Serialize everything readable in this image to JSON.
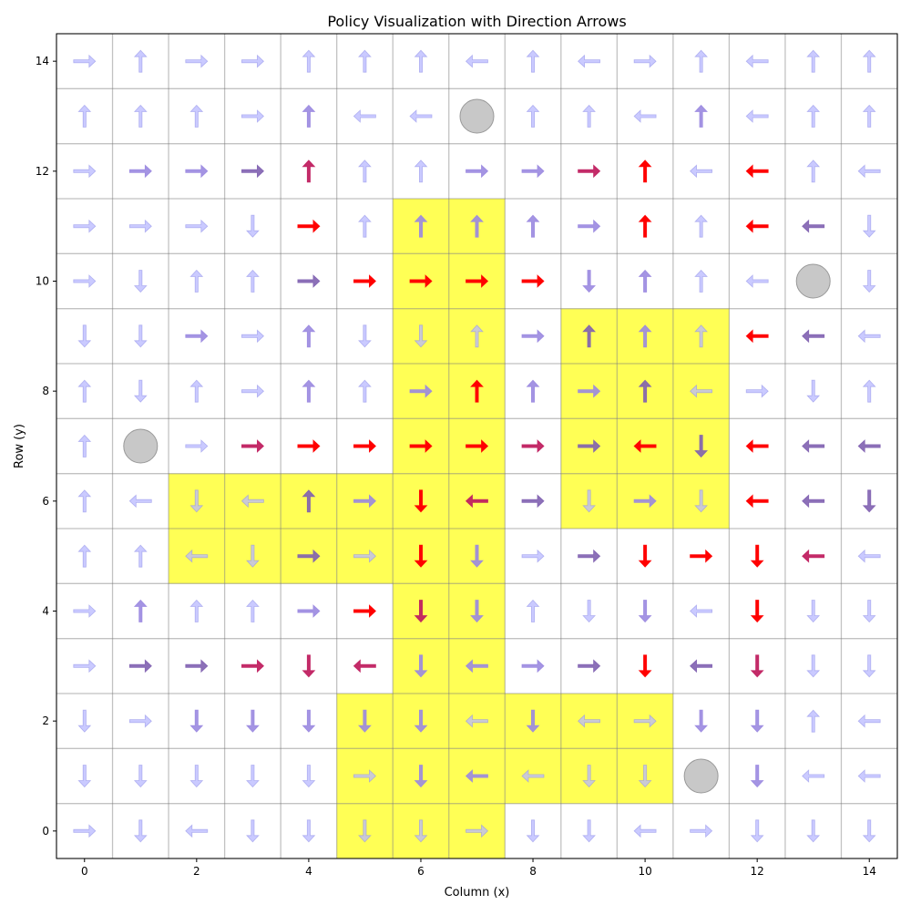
{
  "chart_data": {
    "type": "heatmap",
    "title": "Policy Visualization with Direction Arrows",
    "xlabel": "Column (x)",
    "ylabel": "Row (y)",
    "xlim": [
      -0.5,
      14.5
    ],
    "ylim": [
      14.5,
      -0.5
    ],
    "x_ticks": [
      "0",
      "2",
      "4",
      "6",
      "8",
      "10",
      "12",
      "14"
    ],
    "y_ticks": [
      "0",
      "2",
      "4",
      "6",
      "8",
      "10",
      "12",
      "14"
    ],
    "grid": true,
    "highlight_color": "#ffff55",
    "obstacle_color": "#c8c8c8",
    "grid_size": 15,
    "highlighted_cells": [
      [
        5,
        1
      ],
      [
        6,
        1
      ],
      [
        7,
        1
      ],
      [
        5,
        2
      ],
      [
        6,
        2
      ],
      [
        7,
        2
      ],
      [
        8,
        2
      ],
      [
        9,
        2
      ],
      [
        10,
        2
      ],
      [
        5,
        3
      ],
      [
        6,
        3
      ],
      [
        7,
        3
      ],
      [
        8,
        3
      ],
      [
        9,
        3
      ],
      [
        10,
        3
      ],
      [
        6,
        4
      ],
      [
        7,
        4
      ],
      [
        6,
        5
      ],
      [
        7,
        5
      ],
      [
        2,
        6
      ],
      [
        3,
        6
      ],
      [
        4,
        6
      ],
      [
        5,
        6
      ],
      [
        6,
        6
      ],
      [
        7,
        6
      ],
      [
        2,
        7
      ],
      [
        3,
        7
      ],
      [
        4,
        7
      ],
      [
        5,
        7
      ],
      [
        6,
        7
      ],
      [
        7,
        7
      ],
      [
        9,
        7
      ],
      [
        10,
        7
      ],
      [
        11,
        7
      ],
      [
        6,
        8
      ],
      [
        7,
        8
      ],
      [
        9,
        8
      ],
      [
        10,
        8
      ],
      [
        11,
        8
      ],
      [
        6,
        9
      ],
      [
        7,
        9
      ],
      [
        9,
        9
      ],
      [
        10,
        9
      ],
      [
        11,
        9
      ],
      [
        6,
        10
      ],
      [
        7,
        10
      ],
      [
        9,
        10
      ],
      [
        10,
        10
      ],
      [
        11,
        10
      ],
      [
        6,
        11
      ],
      [
        7,
        11
      ],
      [
        6,
        12
      ],
      [
        7,
        12
      ]
    ],
    "obstacles": [
      [
        11,
        1
      ],
      [
        1,
        7
      ],
      [
        13,
        10
      ],
      [
        7,
        13
      ]
    ],
    "arrow_grid": [
      "RDLDDDDRDDLRDDD",
      "DDDDDRDLLDD.DLL",
      "DRDDDDDLDLRDDUL",
      "RRRRDLDLRRDLDDD",
      "RUUURRDDUDDLDDD",
      "UULDRRDDRRDRDLL",
      "ULDLURDLRDRDLLD",
      "U.RRRRRRRRLDLLL",
      "UDURUURUURULRDU",
      "DDRRUDDURUUULLL",
      "RDUURRRRRDUULOD",
      "RRRDRUUUURUULLD",
      "RRRRUUURRRULLUL",
      "UUURULLOUULULUU",
      "RURRUUULULRULUU"
    ],
    "intensity_grid": [
      "111111111111111",
      "111111221111211",
      "112222212112211",
      "133444222353411",
      "121125421121511",
      "111131521355541",
      "111132543121533",
      "111455554353533",
      "111121252231111",
      "112121112321531",
      "111135555221121",
      "111151222251531",
      "122341122451511",
      "111121111112111",
      "111111111111111"
    ],
    "intensity_colors": {
      "1": "#b8b8ff",
      "2": "#9a88e0",
      "3": "#8060b0",
      "4": "#c02060",
      "5": "#ff0000"
    }
  }
}
